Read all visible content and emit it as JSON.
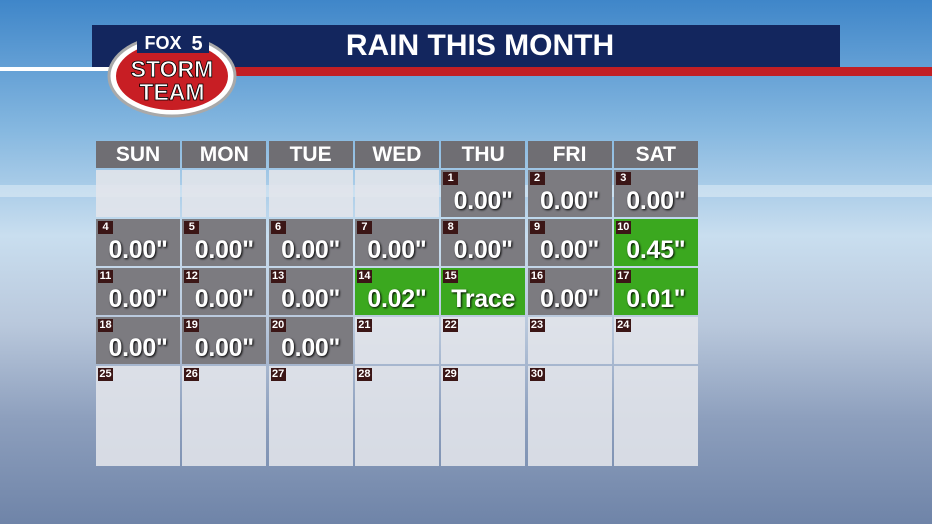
{
  "header": {
    "title": "RAIN THIS MONTH",
    "logo": {
      "network": "FOX",
      "channel": "5",
      "line1": "STORM",
      "line2": "TEAM"
    }
  },
  "calendar": {
    "weekdays": [
      "SUN",
      "MON",
      "TUE",
      "WED",
      "THU",
      "FRI",
      "SAT"
    ],
    "weeks": [
      [
        null,
        null,
        null,
        null,
        {
          "day": 1,
          "value": "0.00\"",
          "color": "#7c7b80"
        },
        {
          "day": 2,
          "value": "0.00\"",
          "color": "#7c7b80"
        },
        {
          "day": 3,
          "value": "0.00\"",
          "color": "#7c7b80"
        }
      ],
      [
        {
          "day": 4,
          "value": "0.00\"",
          "color": "#7c7b80"
        },
        {
          "day": 5,
          "value": "0.00\"",
          "color": "#7c7b80"
        },
        {
          "day": 6,
          "value": "0.00\"",
          "color": "#7c7b80"
        },
        {
          "day": 7,
          "value": "0.00\"",
          "color": "#7c7b80"
        },
        {
          "day": 8,
          "value": "0.00\"",
          "color": "#7c7b80"
        },
        {
          "day": 9,
          "value": "0.00\"",
          "color": "#7c7b80"
        },
        {
          "day": 10,
          "value": "0.45\"",
          "color": "#3ba81f"
        }
      ],
      [
        {
          "day": 11,
          "value": "0.00\"",
          "color": "#7c7b80"
        },
        {
          "day": 12,
          "value": "0.00\"",
          "color": "#7c7b80"
        },
        {
          "day": 13,
          "value": "0.00\"",
          "color": "#7c7b80"
        },
        {
          "day": 14,
          "value": "0.02\"",
          "color": "#3ba81f"
        },
        {
          "day": 15,
          "value": "Trace",
          "color": "#3ba81f"
        },
        {
          "day": 16,
          "value": "0.00\"",
          "color": "#7c7b80"
        },
        {
          "day": 17,
          "value": "0.01\"",
          "color": "#3ba81f"
        }
      ],
      [
        {
          "day": 18,
          "value": "0.00\"",
          "color": "#7c7b80"
        },
        {
          "day": 19,
          "value": "0.00\"",
          "color": "#7c7b80"
        },
        {
          "day": 20,
          "value": "0.00\"",
          "color": "#7c7b80"
        },
        {
          "day": 21
        },
        {
          "day": 22
        },
        {
          "day": 23
        },
        {
          "day": 24
        }
      ],
      [
        {
          "day": 25
        },
        {
          "day": 26
        },
        {
          "day": 27
        },
        {
          "day": 28
        },
        {
          "day": 29
        },
        {
          "day": 30
        },
        null
      ]
    ]
  }
}
